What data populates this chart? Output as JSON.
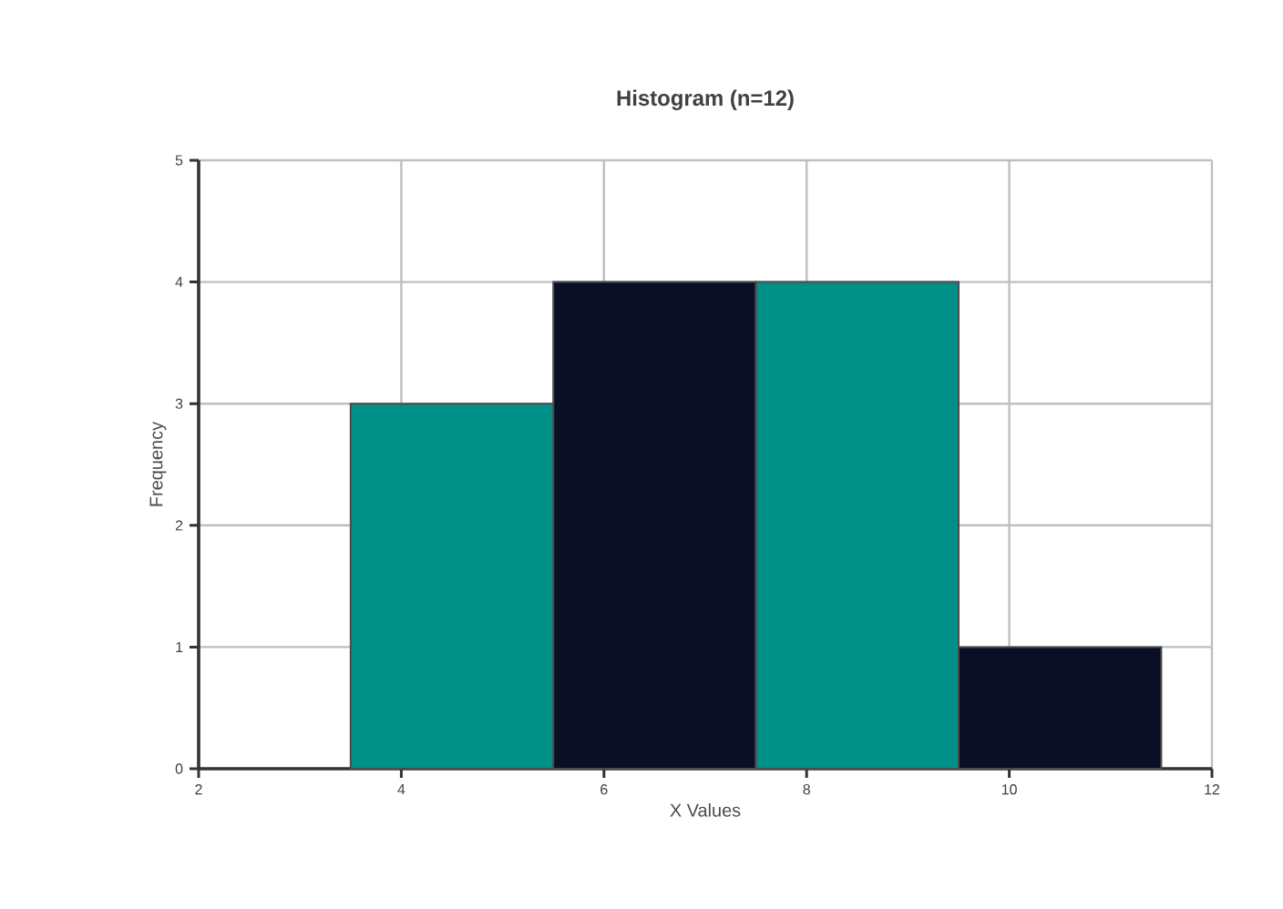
{
  "chart_data": {
    "type": "histogram",
    "title": "Histogram (n=12)",
    "xlabel": "X Values",
    "ylabel": "Frequency",
    "bins": [
      3.5,
      5.5,
      7.5,
      9.5,
      11.5
    ],
    "values": [
      3,
      4,
      4,
      1
    ],
    "colors": [
      "#009088",
      "#0a0f25",
      "#009088",
      "#0a0f25"
    ],
    "xlim": [
      2,
      12
    ],
    "xticks": [
      2,
      4,
      6,
      8,
      10,
      12
    ],
    "ylim": [
      0,
      5
    ],
    "yticks": [
      0,
      1,
      2,
      3,
      4,
      5
    ],
    "grid": true
  }
}
